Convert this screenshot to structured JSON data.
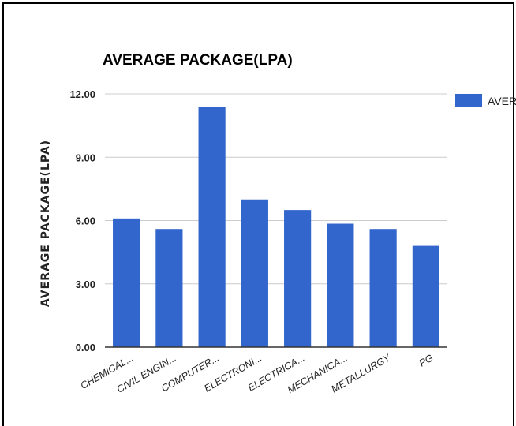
{
  "chart_data": {
    "type": "bar",
    "title": "AVERAGE PACKAGE(LPA)",
    "xlabel": "",
    "ylabel": "AVERAGE PACKAGE(LPA)",
    "categories": [
      "CHEMICAL...",
      "CIVIL ENGIN...",
      "COMPUTER...",
      "ELECTRONI...",
      "ELECTRICA...",
      "MECHANICA...",
      "METALLURGY",
      "PG"
    ],
    "series": [
      {
        "name": "AVER...",
        "values": [
          6.1,
          5.6,
          11.4,
          7.0,
          6.5,
          5.85,
          5.6,
          4.8
        ]
      }
    ],
    "ylim": [
      0,
      12
    ],
    "yticks": [
      "0.00",
      "3.00",
      "6.00",
      "9.00",
      "12.00"
    ],
    "grid": true,
    "legend_position": "right",
    "colors": {
      "bar": "#3366cc",
      "grid": "#cccccc",
      "axis": "#333333"
    }
  }
}
